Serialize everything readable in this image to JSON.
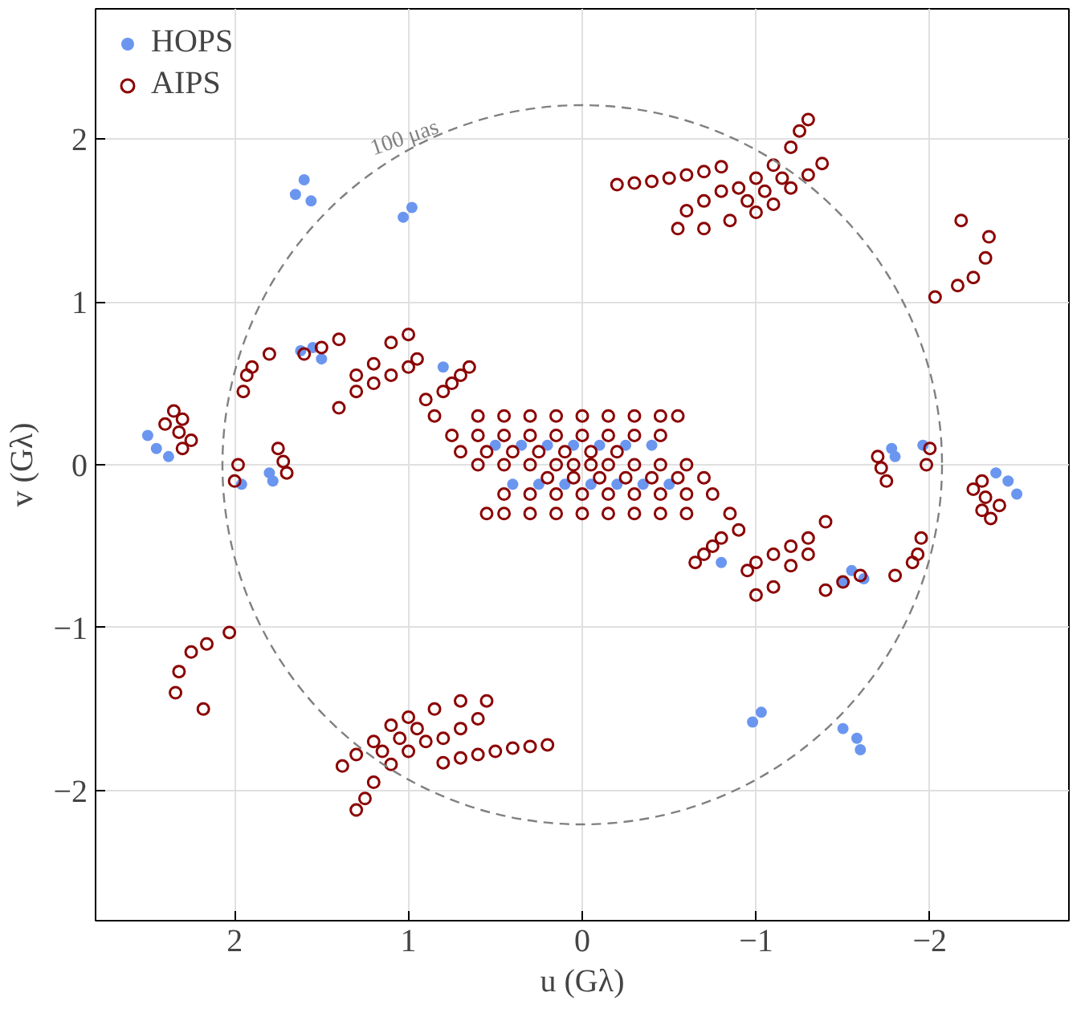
{
  "chart_data": {
    "type": "scatter",
    "xlabel": "u (Gλ)",
    "ylabel": "v (Gλ)",
    "xlim": [
      2.8,
      -2.8
    ],
    "ylim": [
      -2.8,
      2.8
    ],
    "xticks": [
      2,
      1,
      0,
      {
        "value": -1,
        "label": "−1"
      },
      {
        "value": -2,
        "label": "−2"
      }
    ],
    "yticks": [
      {
        "value": -2,
        "label": "−2"
      },
      {
        "value": -1,
        "label": "−1"
      },
      0,
      1,
      2
    ],
    "grid": true,
    "legend": "top left",
    "marker": "circle",
    "annotations": [
      "100 μas"
    ],
    "series": [
      {
        "name": "HOPS",
        "color": "#6b96f0",
        "x": [
          1.6,
          1.65,
          1.56,
          -1.5,
          -1.58,
          -1.6,
          -1.55,
          -1.62,
          -1.5,
          1.5,
          1.62,
          1.55,
          -1.8,
          -1.96,
          -1.78,
          1.8,
          1.96,
          1.78,
          2.45,
          2.38,
          2.5,
          -2.45,
          -2.38,
          -2.5,
          0.5,
          0.35,
          0.2,
          0.05,
          -0.1,
          -0.25,
          -0.4,
          -0.5,
          -0.35,
          -0.2,
          -0.05,
          0.1,
          0.25,
          0.4,
          1.03,
          0.98,
          -1.03,
          -0.98,
          -0.8,
          0.8
        ],
        "values": [
          1.75,
          1.66,
          1.62,
          -1.62,
          -1.68,
          -1.75,
          -0.65,
          -0.7,
          -0.72,
          0.65,
          0.7,
          0.72,
          0.05,
          0.12,
          0.1,
          -0.05,
          -0.12,
          -0.1,
          0.1,
          0.05,
          0.18,
          -0.1,
          -0.05,
          -0.18,
          0.12,
          0.12,
          0.12,
          0.12,
          0.12,
          0.12,
          0.12,
          -0.12,
          -0.12,
          -0.12,
          -0.12,
          -0.12,
          -0.12,
          -0.12,
          1.52,
          1.58,
          -1.52,
          -1.58,
          -0.6,
          0.6
        ]
      },
      {
        "name": "AIPS",
        "color": "#8b0000",
        "x": [
          -0.2,
          -0.3,
          -0.4,
          -0.5,
          -0.6,
          -0.7,
          -0.8,
          -0.55,
          -0.7,
          -0.85,
          -1.0,
          -1.1,
          -1.2,
          -1.3,
          -1.38,
          -0.9,
          -1.0,
          -1.1,
          -1.2,
          -1.25,
          -1.3,
          -0.6,
          -0.7,
          -0.8,
          -0.95,
          -1.05,
          -1.15,
          -2.03,
          -2.16,
          -2.25,
          -2.32,
          -2.34,
          -2.18,
          1.95,
          1.93,
          1.9,
          1.8,
          1.6,
          1.5,
          1.4,
          1.4,
          1.3,
          1.2,
          1.1,
          1.0,
          0.95,
          1.0,
          1.1,
          1.2,
          1.3,
          0.85,
          0.9,
          0.8,
          0.75,
          0.7,
          0.65,
          2.35,
          2.3,
          2.32,
          2.25,
          2.3,
          2.4,
          2.0,
          1.98,
          1.7,
          1.72,
          1.75,
          0.6,
          0.45,
          0.3,
          0.15,
          0.0,
          -0.15,
          -0.3,
          -0.45,
          -0.55,
          0.75,
          0.6,
          0.45,
          0.3,
          0.15,
          0.0,
          -0.15,
          -0.3,
          -0.45,
          0.7,
          0.55,
          0.4,
          0.25,
          0.1,
          -0.05,
          -0.2,
          0.6,
          0.45,
          0.3,
          0.15,
          0.05,
          0.2,
          0.3,
          0.4,
          0.5,
          0.6,
          0.7,
          0.8,
          0.55,
          0.7,
          0.85,
          1.0,
          1.1,
          1.2,
          1.3,
          1.38,
          0.9,
          1.0,
          1.1,
          1.2,
          1.25,
          1.3,
          0.6,
          0.7,
          0.8,
          0.95,
          1.05,
          1.15,
          2.03,
          2.16,
          2.25,
          2.32,
          2.34,
          2.18,
          -1.95,
          -1.93,
          -1.9,
          -1.8,
          -1.6,
          -1.5,
          -1.4,
          -1.4,
          -1.3,
          -1.2,
          -1.1,
          -1.0,
          -0.95,
          -1.0,
          -1.1,
          -1.2,
          -1.3,
          -0.85,
          -0.9,
          -0.8,
          -0.75,
          -0.7,
          -0.65,
          -2.35,
          -2.3,
          -2.32,
          -2.25,
          -2.3,
          -2.4,
          -2.0,
          -1.98,
          -1.7,
          -1.72,
          -1.75,
          -0.6,
          -0.45,
          -0.3,
          -0.15,
          0.0,
          0.15,
          0.3,
          0.45,
          0.55,
          -0.75,
          -0.6,
          -0.45,
          -0.3,
          -0.15,
          0.0,
          0.15,
          0.3,
          0.45,
          -0.7,
          -0.55,
          -0.4,
          -0.25,
          -0.1,
          0.05,
          0.2,
          -0.6,
          -0.45,
          -0.3,
          -0.15,
          -0.05
        ],
        "values": [
          1.72,
          1.73,
          1.74,
          1.76,
          1.78,
          1.8,
          1.83,
          1.45,
          1.45,
          1.5,
          1.55,
          1.6,
          1.7,
          1.78,
          1.85,
          1.7,
          1.76,
          1.84,
          1.95,
          2.05,
          2.12,
          1.56,
          1.62,
          1.68,
          1.62,
          1.68,
          1.76,
          1.03,
          1.1,
          1.15,
          1.27,
          1.4,
          1.5,
          0.45,
          0.55,
          0.6,
          0.68,
          0.68,
          0.72,
          0.77,
          0.35,
          0.45,
          0.5,
          0.55,
          0.6,
          0.65,
          0.8,
          0.75,
          0.62,
          0.55,
          0.3,
          0.4,
          0.45,
          0.5,
          0.55,
          0.6,
          0.33,
          0.28,
          0.2,
          0.15,
          0.1,
          0.25,
          -0.1,
          0.0,
          -0.05,
          0.02,
          0.1,
          0.3,
          0.3,
          0.3,
          0.3,
          0.3,
          0.3,
          0.3,
          0.3,
          0.3,
          0.18,
          0.18,
          0.18,
          0.18,
          0.18,
          0.18,
          0.18,
          0.18,
          0.18,
          0.08,
          0.08,
          0.08,
          0.08,
          0.08,
          0.08,
          0.08,
          0.0,
          0.0,
          0.0,
          0.0,
          0.0,
          -1.72,
          -1.73,
          -1.74,
          -1.76,
          -1.78,
          -1.8,
          -1.83,
          -1.45,
          -1.45,
          -1.5,
          -1.55,
          -1.6,
          -1.7,
          -1.78,
          -1.85,
          -1.7,
          -1.76,
          -1.84,
          -1.95,
          -2.05,
          -2.12,
          -1.56,
          -1.62,
          -1.68,
          -1.62,
          -1.68,
          -1.76,
          -1.03,
          -1.1,
          -1.15,
          -1.27,
          -1.4,
          -1.5,
          -0.45,
          -0.55,
          -0.6,
          -0.68,
          -0.68,
          -0.72,
          -0.77,
          -0.35,
          -0.45,
          -0.5,
          -0.55,
          -0.6,
          -0.65,
          -0.8,
          -0.75,
          -0.62,
          -0.55,
          -0.3,
          -0.4,
          -0.45,
          -0.5,
          -0.55,
          -0.6,
          -0.33,
          -0.28,
          -0.2,
          -0.15,
          -0.1,
          -0.25,
          0.1,
          0.0,
          0.05,
          -0.02,
          -0.1,
          -0.3,
          -0.3,
          -0.3,
          -0.3,
          -0.3,
          -0.3,
          -0.3,
          -0.3,
          -0.3,
          -0.18,
          -0.18,
          -0.18,
          -0.18,
          -0.18,
          -0.18,
          -0.18,
          -0.18,
          -0.18,
          -0.08,
          -0.08,
          -0.08,
          -0.08,
          -0.08,
          -0.08,
          -0.08,
          0.0,
          0.0,
          0.0,
          0.0,
          0.0
        ]
      }
    ]
  }
}
